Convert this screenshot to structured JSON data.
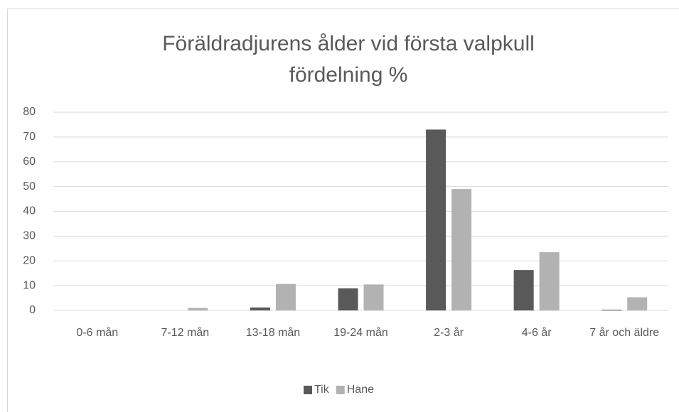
{
  "chart_data": {
    "type": "bar",
    "title": "Föräldradjurens ålder vid första valpkull fördelning %",
    "categories": [
      "0-6 mån",
      "7-12 mån",
      "13-18 mån",
      "19-24 mån",
      "2-3 år",
      "4-6 år",
      "7 år och äldre"
    ],
    "series": [
      {
        "name": "Tik",
        "color": "#595959",
        "values": [
          0,
          0,
          1.2,
          8.9,
          73,
          16.3,
          0.3
        ]
      },
      {
        "name": "Hane",
        "color": "#b2b2b2",
        "values": [
          0,
          1,
          10.7,
          10.5,
          49,
          23.5,
          5.3
        ]
      }
    ],
    "ylim": [
      0,
      80
    ],
    "yticks": [
      0,
      10,
      20,
      30,
      40,
      50,
      60,
      70,
      80
    ],
    "grid": true,
    "legend": "bottom"
  }
}
